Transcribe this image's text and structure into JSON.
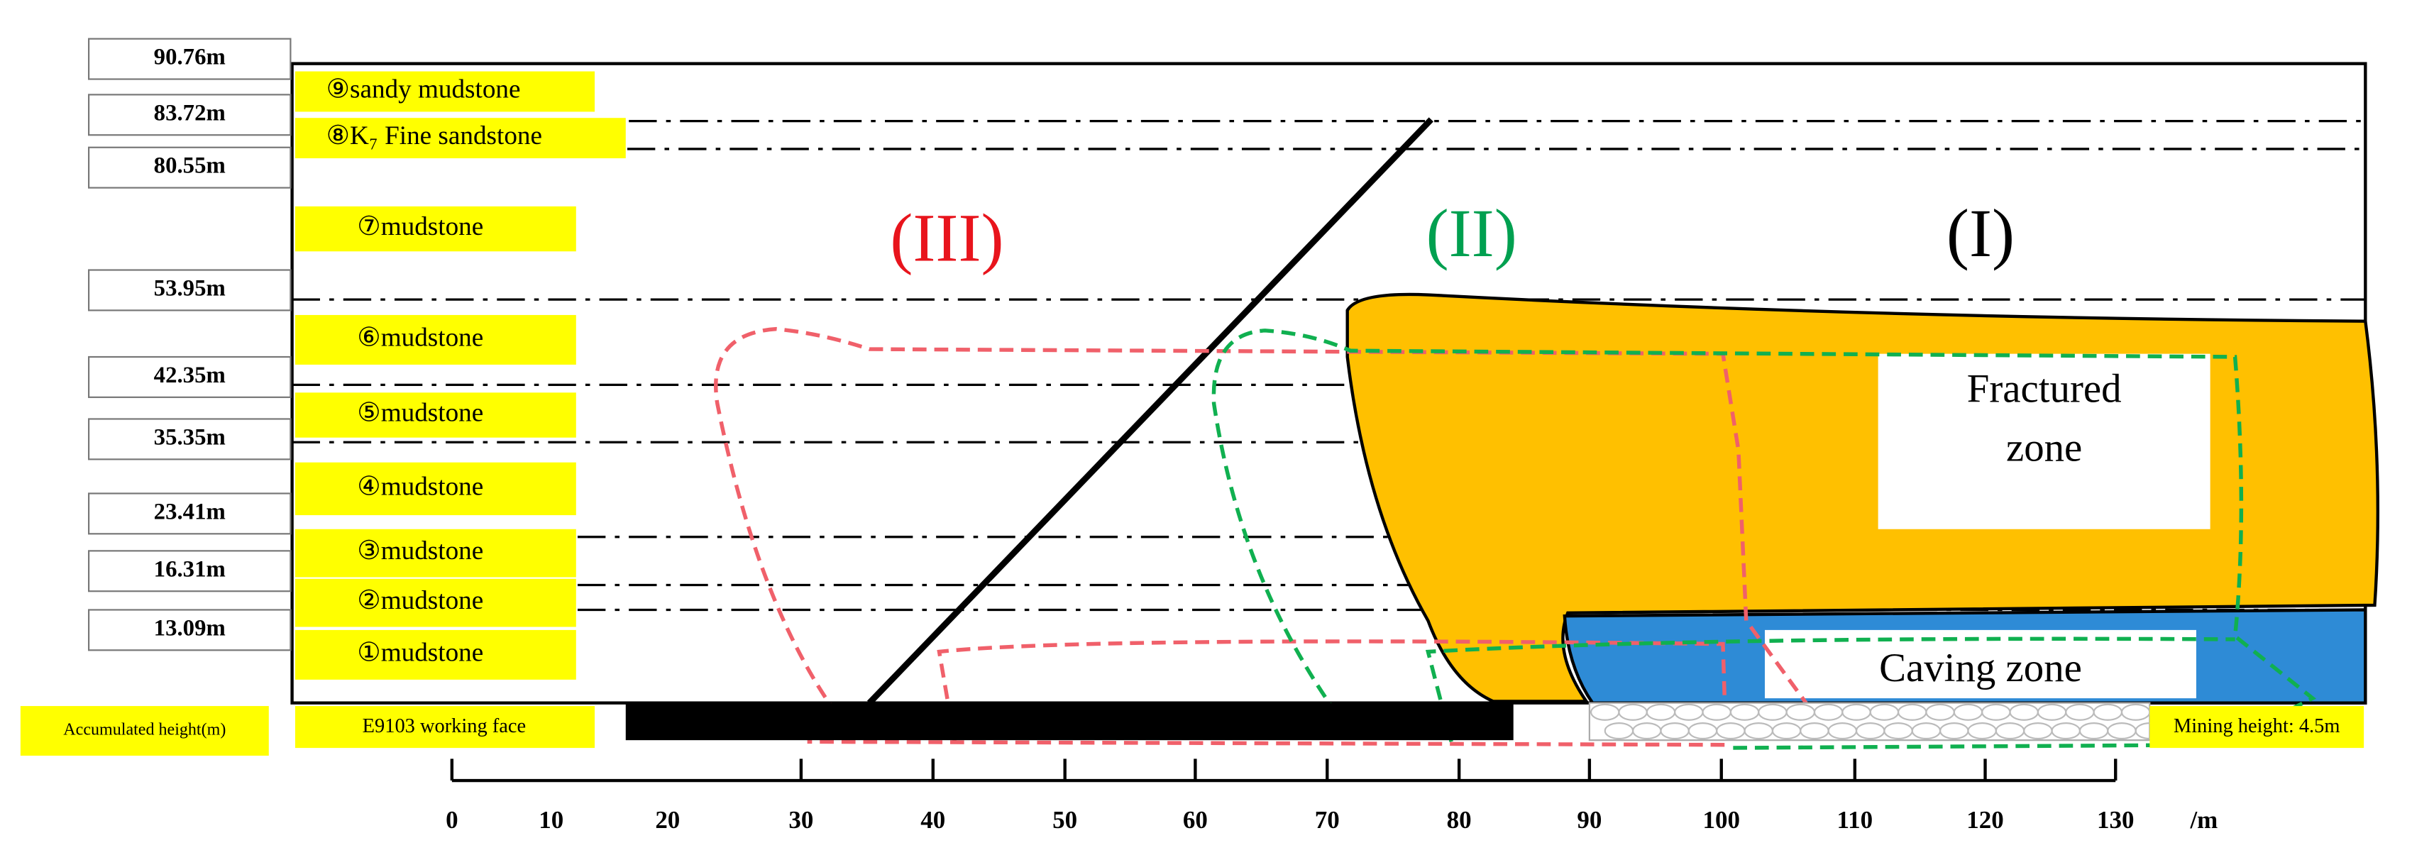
{
  "height_labels": [
    "90.76m",
    "83.72m",
    "80.55m",
    "53.95m",
    "42.35m",
    "35.35m",
    "23.41m",
    "16.31m",
    "13.09m"
  ],
  "strata": [
    "⑨sandy mudstone",
    "⑧K₇ Fine sandstone",
    "⑦mudstone",
    "⑥mudstone",
    "⑤mudstone",
    "④mudstone",
    "③mudstone",
    "②mudstone",
    "①mudstone"
  ],
  "legend": {
    "accumulated": "Accumulated height(m)",
    "working_face": "E9103 working face",
    "mining_height": "Mining height: 4.5m"
  },
  "zones": {
    "zone_3": "(III)",
    "zone_2": "(II)",
    "zone_1": "(I)",
    "fractured": [
      "Fractured",
      "zone"
    ],
    "caving": "Caving zone"
  },
  "x_axis": {
    "ticks": [
      "0",
      "10",
      "20",
      "30",
      "40",
      "50",
      "60",
      "70",
      "80",
      "90",
      "100",
      "110",
      "120",
      "130"
    ],
    "unit": "/m"
  }
}
